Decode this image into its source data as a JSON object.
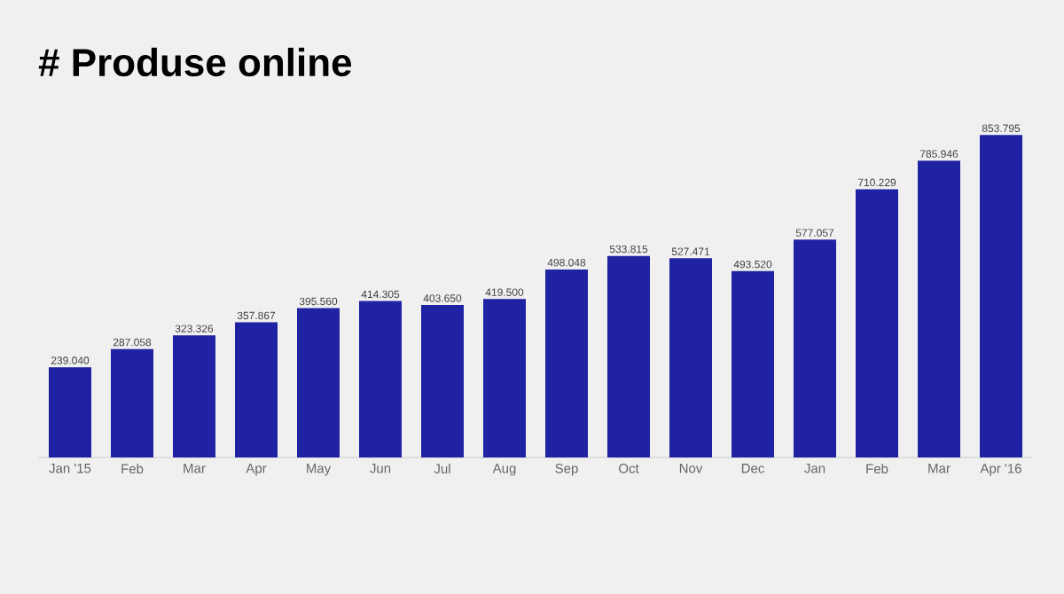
{
  "chart_data": {
    "type": "bar",
    "title": "# Produse online",
    "categories": [
      "Jan '15",
      "Feb",
      "Mar",
      "Apr",
      "May",
      "Jun",
      "Jul",
      "Aug",
      "Sep",
      "Oct",
      "Nov",
      "Dec",
      "Jan",
      "Feb",
      "Mar",
      "Apr '16"
    ],
    "values": [
      239040,
      287058,
      323326,
      357867,
      395560,
      414305,
      403650,
      419500,
      498048,
      533815,
      527471,
      493520,
      577057,
      710229,
      785946,
      853795
    ],
    "value_labels": [
      "239.040",
      "287.058",
      "323.326",
      "357.867",
      "395.560",
      "414.305",
      "403.650",
      "419.500",
      "498.048",
      "533.815",
      "527.471",
      "493.520",
      "577.057",
      "710.229",
      "785.946",
      "853.795"
    ],
    "color": "#1f23a3"
  }
}
